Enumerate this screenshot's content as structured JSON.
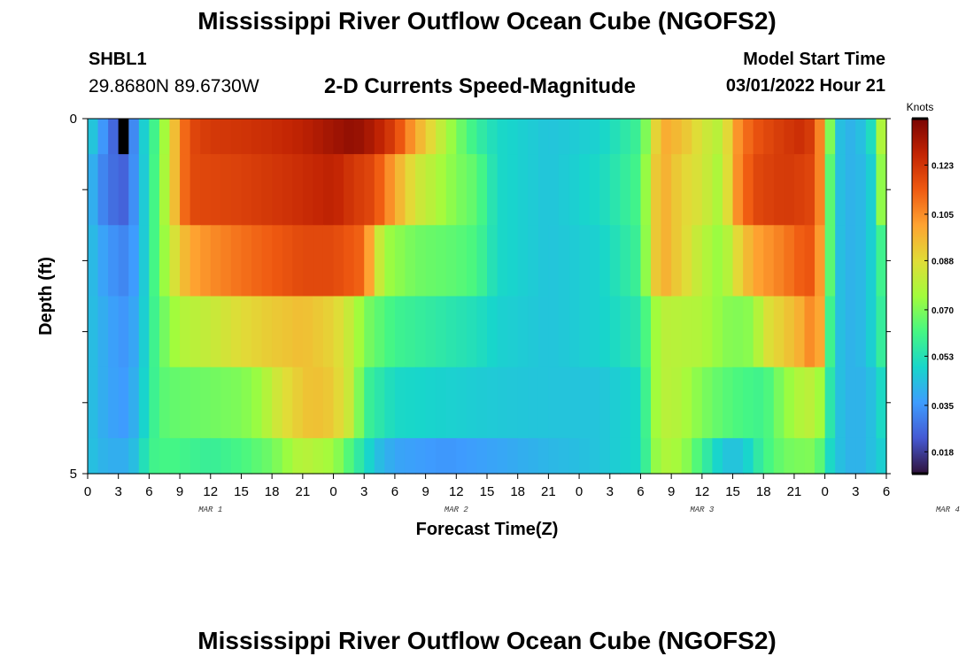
{
  "header": {
    "title": "Mississippi River Outflow Ocean Cube (NGOFS2)",
    "station": "SHBL1",
    "coords": "29.8680N  89.6730W",
    "variable": "2-D Currents Speed-Magnitude",
    "model_start_label": "Model Start Time",
    "model_start_value": "03/01/2022 Hour 21"
  },
  "footer": {
    "title": "Mississippi River Outflow Ocean Cube (NGOFS2)"
  },
  "chart_data": {
    "type": "heatmap",
    "xlabel": "Forecast Time(Z)",
    "ylabel": "Depth (ft)",
    "x_range_hours": [
      0,
      78
    ],
    "x_tick_labels": [
      "0",
      "3",
      "6",
      "9",
      "12",
      "15",
      "18",
      "21",
      "0",
      "3",
      "6",
      "9",
      "12",
      "15",
      "18",
      "21",
      "0",
      "3",
      "6",
      "9",
      "12",
      "15",
      "18",
      "21",
      "0",
      "3",
      "6"
    ],
    "date_labels": [
      "MAR 1",
      "MAR 2",
      "MAR 3",
      "MAR 4"
    ],
    "y_range": [
      0,
      5
    ],
    "y_tick_labels": [
      "0",
      "5"
    ],
    "colorbar": {
      "units": "Knots",
      "min": 0.01,
      "max": 0.14,
      "tick_values": [
        0.123,
        0.105,
        0.088,
        0.07,
        0.053,
        0.035,
        0.018
      ],
      "tick_labels": [
        "0.123",
        "0.105",
        "0.088",
        "0.070",
        "0.053",
        "0.035",
        "0.018"
      ]
    },
    "rows": [
      {
        "depth_from": 0.0,
        "depth_to": 0.5,
        "knots": [
          [
            0,
            0.05
          ],
          [
            1,
            0.04
          ],
          [
            2,
            0.03
          ],
          [
            3,
            0.022
          ],
          [
            3.5,
            0.015
          ],
          [
            4,
            0.025
          ],
          [
            5,
            0.04
          ],
          [
            6,
            0.055
          ],
          [
            7,
            0.066
          ],
          [
            8,
            0.085
          ],
          [
            9,
            0.105
          ],
          [
            10,
            0.118
          ],
          [
            12,
            0.122
          ],
          [
            15,
            0.123
          ],
          [
            18,
            0.125
          ],
          [
            21,
            0.128
          ],
          [
            24,
            0.133
          ],
          [
            26,
            0.136
          ],
          [
            28,
            0.13
          ],
          [
            30,
            0.12
          ],
          [
            32,
            0.1
          ],
          [
            34,
            0.085
          ],
          [
            36,
            0.07
          ],
          [
            38,
            0.058
          ],
          [
            40,
            0.05
          ],
          [
            45,
            0.045
          ],
          [
            50,
            0.048
          ],
          [
            54,
            0.06
          ],
          [
            55,
            0.08
          ],
          [
            56,
            0.1
          ],
          [
            58,
            0.095
          ],
          [
            60,
            0.085
          ],
          [
            62,
            0.078
          ],
          [
            63,
            0.1
          ],
          [
            65,
            0.115
          ],
          [
            68,
            0.122
          ],
          [
            70,
            0.125
          ],
          [
            71,
            0.118
          ],
          [
            72,
            0.095
          ],
          [
            72.5,
            0.07
          ],
          [
            73,
            0.045
          ],
          [
            75,
            0.04
          ],
          [
            77,
            0.055
          ],
          [
            78,
            0.1
          ]
        ]
      },
      {
        "depth_from": 0.5,
        "depth_to": 1.5,
        "knots": [
          [
            0,
            0.045
          ],
          [
            1,
            0.035
          ],
          [
            2,
            0.028
          ],
          [
            3.5,
            0.025
          ],
          [
            5,
            0.038
          ],
          [
            6,
            0.055
          ],
          [
            7,
            0.068
          ],
          [
            8,
            0.085
          ],
          [
            9,
            0.105
          ],
          [
            10,
            0.118
          ],
          [
            15,
            0.12
          ],
          [
            20,
            0.124
          ],
          [
            24,
            0.128
          ],
          [
            26,
            0.122
          ],
          [
            28,
            0.118
          ],
          [
            30,
            0.1
          ],
          [
            32,
            0.085
          ],
          [
            34,
            0.078
          ],
          [
            36,
            0.07
          ],
          [
            38,
            0.065
          ],
          [
            40,
            0.05
          ],
          [
            45,
            0.045
          ],
          [
            50,
            0.05
          ],
          [
            54,
            0.062
          ],
          [
            55,
            0.085
          ],
          [
            56,
            0.1
          ],
          [
            58,
            0.09
          ],
          [
            60,
            0.085
          ],
          [
            62,
            0.075
          ],
          [
            63,
            0.1
          ],
          [
            65,
            0.118
          ],
          [
            68,
            0.122
          ],
          [
            70,
            0.12
          ],
          [
            71,
            0.118
          ],
          [
            72,
            0.095
          ],
          [
            72.5,
            0.065
          ],
          [
            73,
            0.045
          ],
          [
            75,
            0.04
          ],
          [
            77,
            0.05
          ],
          [
            78,
            0.095
          ]
        ]
      },
      {
        "depth_from": 1.5,
        "depth_to": 2.5,
        "knots": [
          [
            0,
            0.045
          ],
          [
            2,
            0.035
          ],
          [
            3.5,
            0.032
          ],
          [
            5,
            0.038
          ],
          [
            6,
            0.055
          ],
          [
            7,
            0.068
          ],
          [
            8,
            0.08
          ],
          [
            9,
            0.092
          ],
          [
            10,
            0.1
          ],
          [
            12,
            0.105
          ],
          [
            15,
            0.11
          ],
          [
            18,
            0.114
          ],
          [
            21,
            0.118
          ],
          [
            24,
            0.118
          ],
          [
            27,
            0.112
          ],
          [
            28,
            0.09
          ],
          [
            29,
            0.075
          ],
          [
            32,
            0.068
          ],
          [
            36,
            0.065
          ],
          [
            38,
            0.062
          ],
          [
            40,
            0.05
          ],
          [
            45,
            0.045
          ],
          [
            50,
            0.048
          ],
          [
            54,
            0.06
          ],
          [
            55,
            0.085
          ],
          [
            56,
            0.1
          ],
          [
            58,
            0.09
          ],
          [
            60,
            0.08
          ],
          [
            62,
            0.072
          ],
          [
            63,
            0.085
          ],
          [
            65,
            0.1
          ],
          [
            68,
            0.108
          ],
          [
            70,
            0.115
          ],
          [
            71,
            0.115
          ],
          [
            72,
            0.09
          ],
          [
            72.5,
            0.065
          ],
          [
            73,
            0.045
          ],
          [
            75,
            0.04
          ],
          [
            77,
            0.05
          ],
          [
            78,
            0.07
          ]
        ]
      },
      {
        "depth_from": 2.5,
        "depth_to": 3.5,
        "knots": [
          [
            0,
            0.045
          ],
          [
            2,
            0.038
          ],
          [
            3.5,
            0.035
          ],
          [
            5,
            0.04
          ],
          [
            6,
            0.055
          ],
          [
            7,
            0.065
          ],
          [
            8,
            0.072
          ],
          [
            9,
            0.078
          ],
          [
            12,
            0.082
          ],
          [
            15,
            0.088
          ],
          [
            18,
            0.092
          ],
          [
            21,
            0.095
          ],
          [
            24,
            0.09
          ],
          [
            26,
            0.08
          ],
          [
            27,
            0.07
          ],
          [
            30,
            0.06
          ],
          [
            32,
            0.058
          ],
          [
            35,
            0.055
          ],
          [
            38,
            0.052
          ],
          [
            40,
            0.048
          ],
          [
            45,
            0.045
          ],
          [
            50,
            0.048
          ],
          [
            54,
            0.055
          ],
          [
            55,
            0.07
          ],
          [
            56,
            0.08
          ],
          [
            60,
            0.078
          ],
          [
            62,
            0.072
          ],
          [
            63,
            0.07
          ],
          [
            65,
            0.072
          ],
          [
            66,
            0.085
          ],
          [
            68,
            0.092
          ],
          [
            70,
            0.1
          ],
          [
            71,
            0.11
          ],
          [
            72,
            0.09
          ],
          [
            72.5,
            0.06
          ],
          [
            73,
            0.045
          ],
          [
            75,
            0.04
          ],
          [
            77,
            0.05
          ],
          [
            78,
            0.065
          ]
        ]
      },
      {
        "depth_from": 3.5,
        "depth_to": 4.5,
        "knots": [
          [
            0,
            0.045
          ],
          [
            2,
            0.038
          ],
          [
            3.5,
            0.036
          ],
          [
            5,
            0.042
          ],
          [
            6,
            0.055
          ],
          [
            7,
            0.064
          ],
          [
            8,
            0.066
          ],
          [
            12,
            0.068
          ],
          [
            15,
            0.07
          ],
          [
            17,
            0.075
          ],
          [
            18,
            0.082
          ],
          [
            20,
            0.09
          ],
          [
            22,
            0.095
          ],
          [
            24,
            0.092
          ],
          [
            26,
            0.08
          ],
          [
            27,
            0.06
          ],
          [
            30,
            0.05
          ],
          [
            35,
            0.048
          ],
          [
            40,
            0.046
          ],
          [
            45,
            0.045
          ],
          [
            50,
            0.045
          ],
          [
            54,
            0.05
          ],
          [
            55,
            0.07
          ],
          [
            56,
            0.08
          ],
          [
            58,
            0.078
          ],
          [
            60,
            0.07
          ],
          [
            62,
            0.065
          ],
          [
            64,
            0.062
          ],
          [
            66,
            0.06
          ],
          [
            68,
            0.072
          ],
          [
            70,
            0.08
          ],
          [
            71,
            0.08
          ],
          [
            72,
            0.07
          ],
          [
            72.5,
            0.055
          ],
          [
            73,
            0.045
          ],
          [
            75,
            0.04
          ],
          [
            77,
            0.045
          ],
          [
            78,
            0.055
          ]
        ]
      },
      {
        "depth_from": 4.5,
        "depth_to": 5.0,
        "knots": [
          [
            0,
            0.045
          ],
          [
            2,
            0.04
          ],
          [
            3.5,
            0.04
          ],
          [
            5,
            0.045
          ],
          [
            6,
            0.06
          ],
          [
            8,
            0.062
          ],
          [
            12,
            0.058
          ],
          [
            15,
            0.062
          ],
          [
            18,
            0.068
          ],
          [
            21,
            0.08
          ],
          [
            24,
            0.075
          ],
          [
            26,
            0.06
          ],
          [
            28,
            0.045
          ],
          [
            30,
            0.038
          ],
          [
            35,
            0.035
          ],
          [
            40,
            0.038
          ],
          [
            45,
            0.042
          ],
          [
            50,
            0.045
          ],
          [
            54,
            0.05
          ],
          [
            55,
            0.068
          ],
          [
            56,
            0.078
          ],
          [
            58,
            0.075
          ],
          [
            60,
            0.06
          ],
          [
            62,
            0.045
          ],
          [
            64,
            0.045
          ],
          [
            66,
            0.06
          ],
          [
            68,
            0.068
          ],
          [
            70,
            0.07
          ],
          [
            71,
            0.07
          ],
          [
            72,
            0.06
          ],
          [
            72.5,
            0.05
          ],
          [
            73,
            0.045
          ],
          [
            75,
            0.04
          ],
          [
            77,
            0.045
          ],
          [
            78,
            0.05
          ]
        ]
      }
    ],
    "annotation_cells": [
      {
        "x_from": 3.0,
        "x_to": 4.0,
        "depth_from": 0.0,
        "depth_to": 0.5,
        "note": "black cell"
      }
    ]
  }
}
